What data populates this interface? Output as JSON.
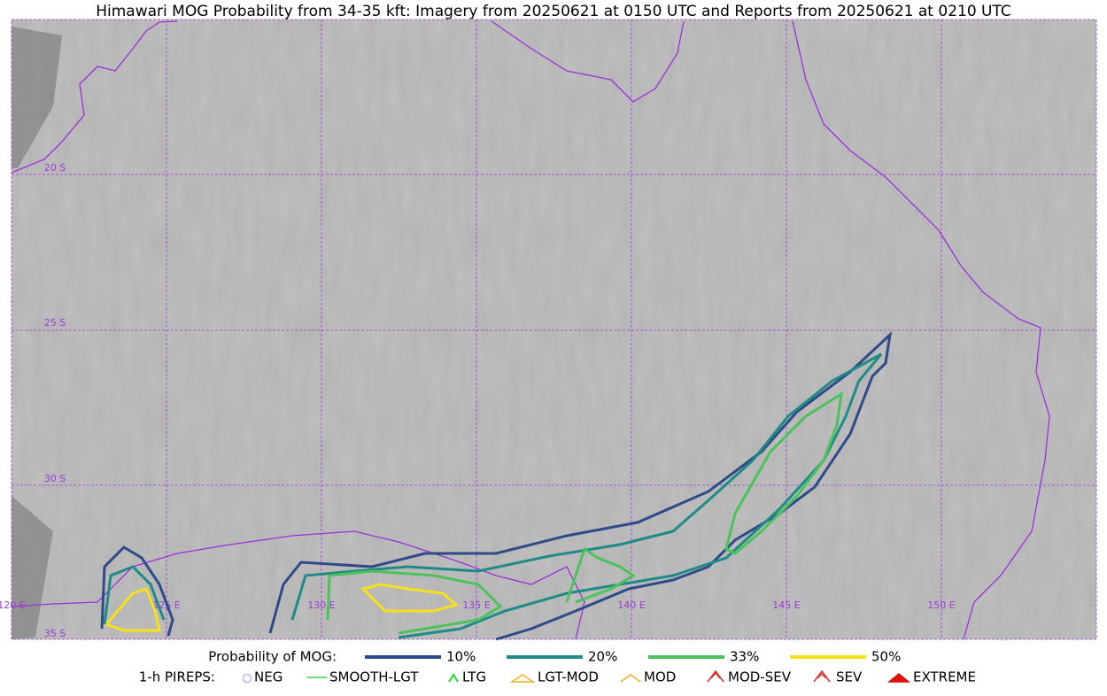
{
  "title": "Himawari MOG Probability from 34-35 kft: Imagery from 20250621 at 0150 UTC and Reports from 20250621 at 0210 UTC",
  "grid_labels": {
    "lat": [
      "20 S",
      "25 S",
      "30 S",
      "35 S"
    ],
    "lon": [
      "120 E",
      "125 E",
      "130 E",
      "135 E",
      "140 E",
      "145 E",
      "150 E"
    ]
  },
  "legend": {
    "probability": {
      "label": "Probability of MOG:",
      "items": [
        {
          "label": "10%",
          "color": "#2e4a87"
        },
        {
          "label": "20%",
          "color": "#1f8a86"
        },
        {
          "label": "33%",
          "color": "#4cc25c"
        },
        {
          "label": "50%",
          "color": "#f5e21a"
        }
      ]
    },
    "pireps": {
      "label": "1-h PIREPS:",
      "items": [
        "NEG",
        "SMOOTH-LGT",
        "LTG",
        "LGT-MOD",
        "MOD",
        "MOD-SEV",
        "SEV",
        "EXTREME"
      ]
    }
  }
}
